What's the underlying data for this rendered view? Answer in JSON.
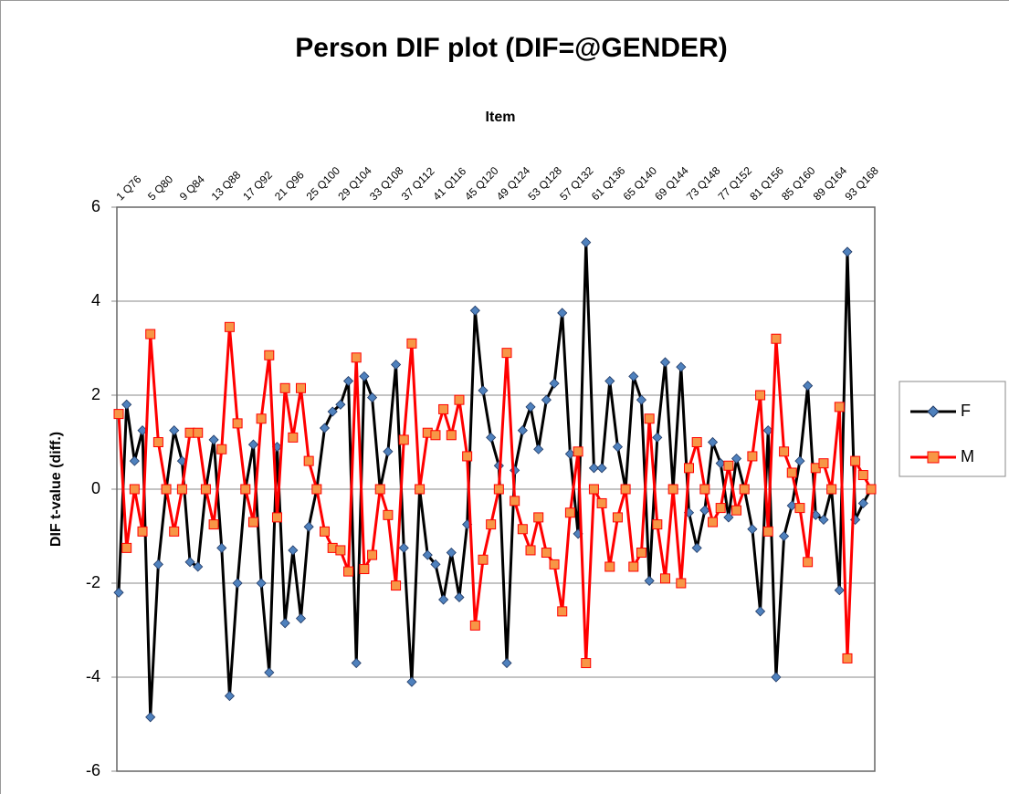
{
  "chart_data": {
    "type": "line",
    "title": "Person DIF plot (DIF=@GENDER)",
    "x_label": "Item",
    "y_label": "DIF t-value (diff.)",
    "categories": [
      "1 Q76",
      null,
      null,
      null,
      "5 Q80",
      null,
      null,
      null,
      "9 Q84",
      null,
      null,
      null,
      "13 Q88",
      null,
      null,
      null,
      "17 Q92",
      null,
      null,
      null,
      "21 Q96",
      null,
      null,
      null,
      "25 Q100",
      null,
      null,
      null,
      "29 Q104",
      null,
      null,
      null,
      "33 Q108",
      null,
      null,
      null,
      "37 Q112",
      null,
      null,
      null,
      "41 Q116",
      null,
      null,
      null,
      "45 Q120",
      null,
      null,
      null,
      "49 Q124",
      null,
      null,
      null,
      "53 Q128",
      null,
      null,
      null,
      "57 Q132",
      null,
      null,
      null,
      "61 Q136",
      null,
      null,
      null,
      "65 Q140",
      null,
      null,
      null,
      "69 Q144",
      null,
      null,
      null,
      "73 Q148",
      null,
      null,
      null,
      "77 Q152",
      null,
      null,
      null,
      "81 Q156",
      null,
      null,
      null,
      "85 Q160",
      null,
      null,
      null,
      "89 Q164",
      null,
      null,
      null,
      "93 Q168",
      null,
      null,
      null
    ],
    "series": [
      {
        "name": "F",
        "color": "#000000",
        "marker": "diamond",
        "marker_color": "#4f81bd",
        "values": [
          -2.2,
          1.8,
          0.6,
          1.25,
          -4.85,
          -1.6,
          0,
          1.25,
          0.6,
          -1.55,
          -1.65,
          0,
          1.05,
          -1.25,
          -4.4,
          -2.0,
          0,
          0.95,
          -2.0,
          -3.9,
          0.9,
          -2.85,
          -1.3,
          -2.75,
          -0.8,
          0,
          1.3,
          1.65,
          1.8,
          2.3,
          -3.7,
          2.4,
          1.95,
          0,
          0.8,
          2.65,
          -1.25,
          -4.1,
          0,
          -1.4,
          -1.6,
          -2.35,
          -1.35,
          -2.3,
          -0.75,
          3.8,
          2.1,
          1.1,
          0.5,
          -3.7,
          0.4,
          1.25,
          1.75,
          0.85,
          1.9,
          2.25,
          3.75,
          0.75,
          -0.95,
          5.25,
          0.45,
          0.45,
          2.3,
          0.9,
          0,
          2.4,
          1.9,
          -1.95,
          1.1,
          2.7,
          0,
          2.6,
          -0.5,
          -1.25,
          -0.45,
          1.0,
          0.55,
          -0.6,
          0.65,
          0,
          -0.85,
          -2.6,
          1.25,
          -4.0,
          -1.0,
          -0.35,
          0.6,
          2.2,
          -0.55,
          -0.65,
          0,
          -2.15,
          5.05,
          -0.65,
          -0.3,
          0
        ]
      },
      {
        "name": "M",
        "color": "#ff0000",
        "marker": "square",
        "marker_color": "#f79646",
        "values": [
          1.6,
          -1.25,
          0,
          -0.9,
          3.3,
          1.0,
          0,
          -0.9,
          0,
          1.2,
          1.2,
          0,
          -0.75,
          0.85,
          3.45,
          1.4,
          0,
          -0.7,
          1.5,
          2.85,
          -0.6,
          2.15,
          1.1,
          2.15,
          0.6,
          0,
          -0.9,
          -1.25,
          -1.3,
          -1.75,
          2.8,
          -1.7,
          -1.4,
          0,
          -0.55,
          -2.05,
          1.05,
          3.1,
          0,
          1.2,
          1.15,
          1.7,
          1.15,
          1.9,
          0.7,
          -2.9,
          -1.5,
          -0.75,
          0,
          2.9,
          -0.25,
          -0.85,
          -1.3,
          -0.6,
          -1.35,
          -1.6,
          -2.6,
          -0.5,
          0.8,
          -3.7,
          0,
          -0.3,
          -1.65,
          -0.6,
          0,
          -1.65,
          -1.35,
          1.5,
          -0.75,
          -1.9,
          0,
          -2.0,
          0.45,
          1.0,
          0,
          -0.7,
          -0.4,
          0.5,
          -0.45,
          0,
          0.7,
          2.0,
          -0.9,
          3.2,
          0.8,
          0.35,
          -0.4,
          -1.55,
          0.45,
          0.55,
          0,
          1.75,
          -3.6,
          0.6,
          0.3,
          0
        ]
      }
    ],
    "ylim": [
      -6,
      6
    ],
    "yticks": [
      -6,
      -4,
      -2,
      0,
      2,
      4,
      6
    ],
    "grid": true,
    "legend": "right"
  }
}
